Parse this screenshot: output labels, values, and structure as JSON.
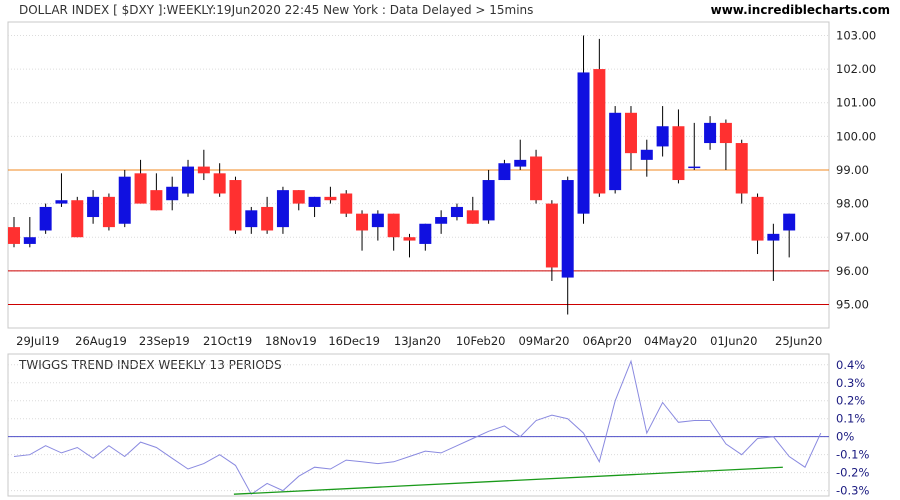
{
  "header": {
    "title": "DOLLAR INDEX [ $DXY ]:WEEKLY:19Jun2020 22:45 New York : Data Delayed > 15mins",
    "site": "www.incrediblecharts.com"
  },
  "colors": {
    "up": "#1010e0",
    "down": "#ff3030",
    "wick": "#000000",
    "resistance": "#f08820",
    "support": "#cc0000",
    "indicator": "#8a8ae0",
    "trend": "#1a9a1a",
    "zero": "#5050c8"
  },
  "chart_data": [
    {
      "type": "candlestick",
      "title": "DOLLAR INDEX [ $DXY ]:WEEKLY",
      "ylim": [
        94.3,
        103.4
      ],
      "ytick_values": [
        95,
        96,
        97,
        98,
        99,
        100,
        101,
        102,
        103
      ],
      "ytick_labels": [
        "95.00",
        "96.00",
        "97.00",
        "98.00",
        "99.00",
        "100.00",
        "101.00",
        "102.00",
        "103.00"
      ],
      "xtick_labels": [
        "29Jul19",
        "26Aug19",
        "23Sep19",
        "21Oct19",
        "18Nov19",
        "16Dec19",
        "13Jan20",
        "10Feb20",
        "09Mar20",
        "06Apr20",
        "04May20",
        "01Jun20",
        "25Jun20"
      ],
      "xtick_index": [
        1.5,
        5.5,
        9.5,
        13.5,
        17.5,
        21.5,
        25.5,
        29.5,
        33.5,
        37.5,
        41.5,
        45.5,
        49.6
      ],
      "horizontal_lines": [
        {
          "value": 99.0,
          "kind": "resistance"
        },
        {
          "value": 96.0,
          "kind": "support"
        },
        {
          "value": 95.0,
          "kind": "support"
        }
      ],
      "candles": [
        {
          "o": 97.3,
          "h": 97.6,
          "l": 96.7,
          "c": 96.8
        },
        {
          "o": 96.8,
          "h": 97.6,
          "l": 96.7,
          "c": 97.0
        },
        {
          "o": 97.2,
          "h": 98.0,
          "l": 97.1,
          "c": 97.9
        },
        {
          "o": 98.0,
          "h": 98.9,
          "l": 97.9,
          "c": 98.1
        },
        {
          "o": 98.1,
          "h": 98.2,
          "l": 97.0,
          "c": 97.0
        },
        {
          "o": 97.6,
          "h": 98.4,
          "l": 97.4,
          "c": 98.2
        },
        {
          "o": 98.2,
          "h": 98.3,
          "l": 97.2,
          "c": 97.3
        },
        {
          "o": 97.4,
          "h": 99.0,
          "l": 97.3,
          "c": 98.8
        },
        {
          "o": 98.9,
          "h": 99.3,
          "l": 98.0,
          "c": 98.0
        },
        {
          "o": 98.4,
          "h": 98.9,
          "l": 97.8,
          "c": 97.8
        },
        {
          "o": 98.1,
          "h": 98.8,
          "l": 97.8,
          "c": 98.5
        },
        {
          "o": 98.3,
          "h": 99.3,
          "l": 98.2,
          "c": 99.1
        },
        {
          "o": 99.1,
          "h": 99.6,
          "l": 98.7,
          "c": 98.9
        },
        {
          "o": 98.9,
          "h": 99.2,
          "l": 98.2,
          "c": 98.3
        },
        {
          "o": 98.7,
          "h": 98.8,
          "l": 97.1,
          "c": 97.2
        },
        {
          "o": 97.3,
          "h": 97.9,
          "l": 97.1,
          "c": 97.8
        },
        {
          "o": 97.9,
          "h": 98.2,
          "l": 97.1,
          "c": 97.2
        },
        {
          "o": 97.3,
          "h": 98.5,
          "l": 97.1,
          "c": 98.4
        },
        {
          "o": 98.4,
          "h": 98.4,
          "l": 97.8,
          "c": 98.0
        },
        {
          "o": 97.9,
          "h": 98.2,
          "l": 97.6,
          "c": 98.2
        },
        {
          "o": 98.2,
          "h": 98.5,
          "l": 98.0,
          "c": 98.1
        },
        {
          "o": 98.3,
          "h": 98.4,
          "l": 97.6,
          "c": 97.7
        },
        {
          "o": 97.7,
          "h": 97.8,
          "l": 96.6,
          "c": 97.2
        },
        {
          "o": 97.3,
          "h": 97.8,
          "l": 96.9,
          "c": 97.7
        },
        {
          "o": 97.7,
          "h": 97.7,
          "l": 96.6,
          "c": 97.0
        },
        {
          "o": 97.0,
          "h": 97.1,
          "l": 96.4,
          "c": 96.9
        },
        {
          "o": 96.8,
          "h": 97.4,
          "l": 96.6,
          "c": 97.4
        },
        {
          "o": 97.4,
          "h": 97.8,
          "l": 97.1,
          "c": 97.6
        },
        {
          "o": 97.6,
          "h": 98.0,
          "l": 97.5,
          "c": 97.9
        },
        {
          "o": 97.8,
          "h": 98.2,
          "l": 97.4,
          "c": 97.4
        },
        {
          "o": 97.5,
          "h": 99.0,
          "l": 97.4,
          "c": 98.7
        },
        {
          "o": 98.7,
          "h": 99.3,
          "l": 98.7,
          "c": 99.2
        },
        {
          "o": 99.1,
          "h": 99.9,
          "l": 99.0,
          "c": 99.3
        },
        {
          "o": 99.4,
          "h": 99.6,
          "l": 98.0,
          "c": 98.1
        },
        {
          "o": 98.0,
          "h": 98.1,
          "l": 95.7,
          "c": 96.1
        },
        {
          "o": 95.8,
          "h": 98.8,
          "l": 94.7,
          "c": 98.7
        },
        {
          "o": 97.7,
          "h": 103.0,
          "l": 97.4,
          "c": 101.9
        },
        {
          "o": 102.0,
          "h": 102.9,
          "l": 98.2,
          "c": 98.3
        },
        {
          "o": 98.4,
          "h": 100.9,
          "l": 98.3,
          "c": 100.7
        },
        {
          "o": 100.7,
          "h": 100.9,
          "l": 99.0,
          "c": 99.5
        },
        {
          "o": 99.3,
          "h": 99.9,
          "l": 98.8,
          "c": 99.6
        },
        {
          "o": 99.7,
          "h": 100.9,
          "l": 99.4,
          "c": 100.3
        },
        {
          "o": 100.3,
          "h": 100.8,
          "l": 98.6,
          "c": 98.7
        },
        {
          "o": 99.1,
          "h": 100.4,
          "l": 99.0,
          "c": 99.1
        },
        {
          "o": 99.8,
          "h": 100.6,
          "l": 99.6,
          "c": 100.4
        },
        {
          "o": 100.4,
          "h": 100.5,
          "l": 99.0,
          "c": 99.8
        },
        {
          "o": 99.8,
          "h": 99.9,
          "l": 98.0,
          "c": 98.3
        },
        {
          "o": 98.2,
          "h": 98.3,
          "l": 96.5,
          "c": 96.9
        },
        {
          "o": 96.9,
          "h": 97.4,
          "l": 95.7,
          "c": 97.1
        },
        {
          "o": 97.2,
          "h": 97.7,
          "l": 96.4,
          "c": 97.7
        }
      ]
    },
    {
      "type": "line",
      "title": "TWIGGS TREND INDEX WEEKLY 13 PERIODS",
      "ylim": [
        -0.33,
        0.46
      ],
      "ytick_values": [
        0.4,
        0.3,
        0.2,
        0.1,
        0.0,
        -0.1,
        -0.2,
        -0.3
      ],
      "ytick_labels": [
        "0.4%",
        "0.3%",
        "0.2%",
        "0.1%",
        "0%",
        "-0.1%",
        "-0.2%",
        "-0.3%"
      ],
      "zero_line": 0,
      "series": [
        {
          "kind": "indicator",
          "start_index": 0,
          "values": [
            -0.11,
            -0.1,
            -0.05,
            -0.09,
            -0.06,
            -0.12,
            -0.05,
            -0.11,
            -0.03,
            -0.06,
            -0.12,
            -0.18,
            -0.15,
            -0.1,
            -0.16,
            -0.32,
            -0.26,
            -0.3,
            -0.22,
            -0.17,
            -0.18,
            -0.13,
            -0.14,
            -0.15,
            -0.14,
            -0.11,
            -0.08,
            -0.09,
            -0.05,
            -0.01,
            0.03,
            0.06,
            0.0,
            0.09,
            0.12,
            0.1,
            0.02,
            -0.14,
            0.2,
            0.42,
            0.02,
            0.19,
            0.08,
            0.09,
            0.09,
            -0.04,
            -0.1,
            -0.01,
            0.0,
            -0.11,
            -0.17,
            0.02
          ]
        },
        {
          "kind": "trend",
          "points": [
            {
              "i": 13.9,
              "v": -0.32
            },
            {
              "i": 48.6,
              "v": -0.17
            }
          ]
        }
      ]
    }
  ]
}
